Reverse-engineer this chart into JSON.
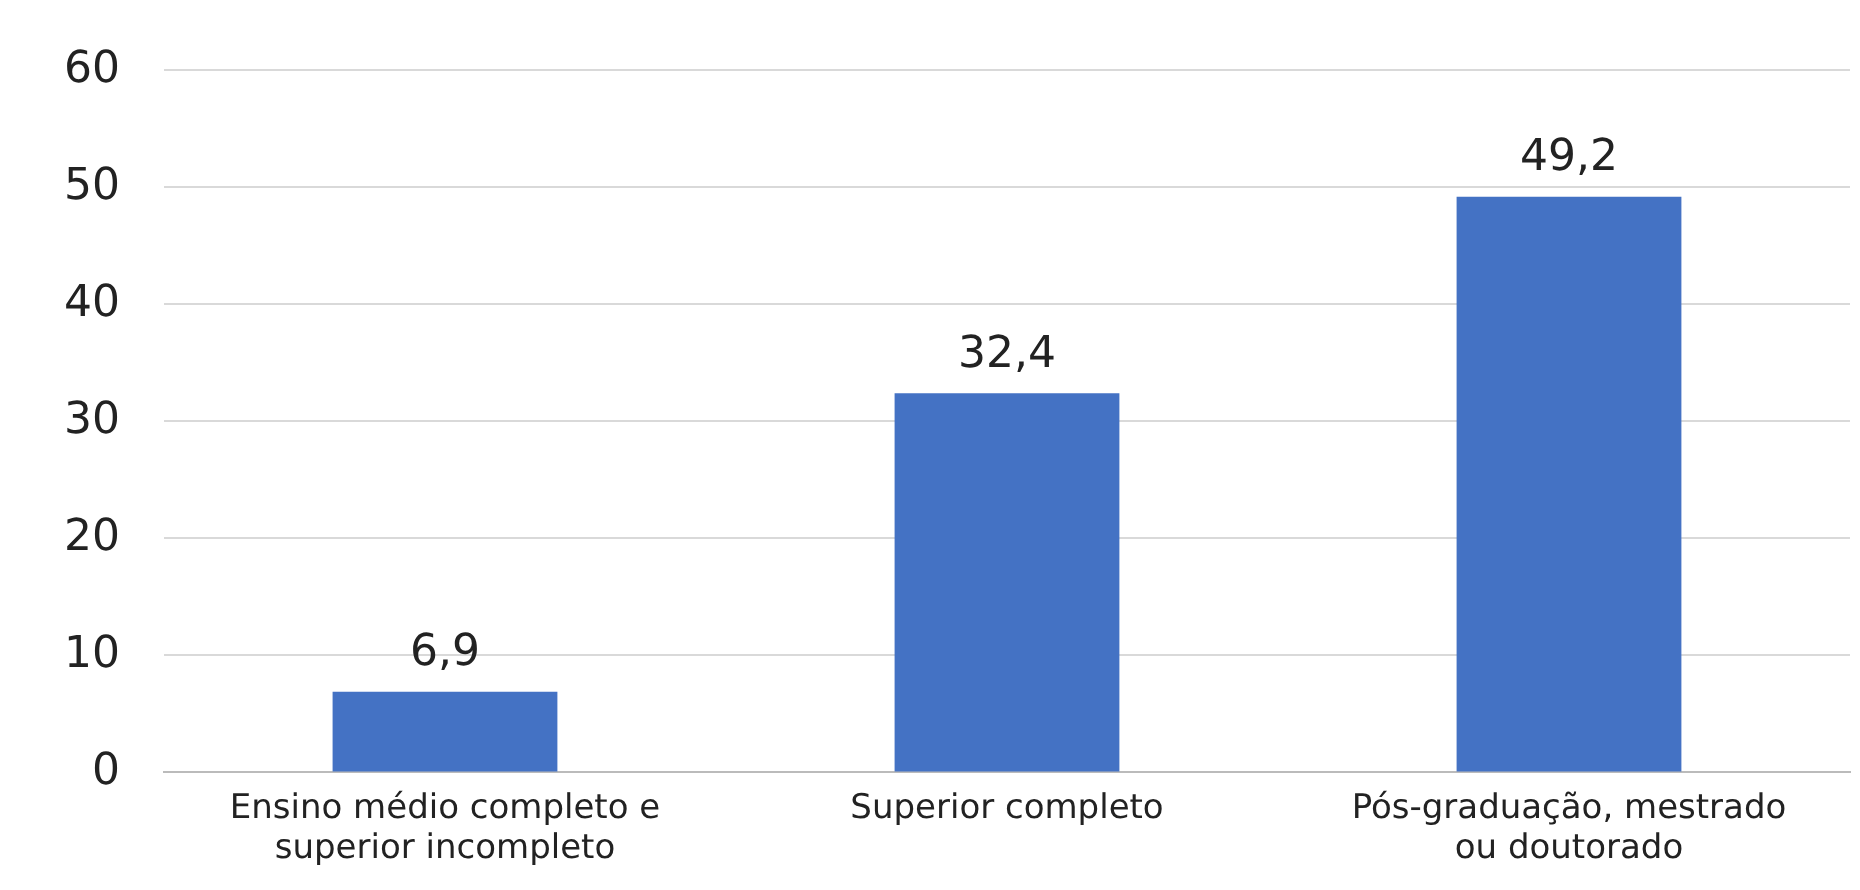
{
  "chart_data": {
    "type": "bar",
    "categories": [
      "Ensino médio completo e superior incompleto",
      "Superior completo",
      "Pós-graduação, mestrado ou doutorado"
    ],
    "values": [
      6.9,
      32.4,
      49.2
    ],
    "value_labels": [
      "6,9",
      "32,4",
      "49,2"
    ],
    "color": "#4472c4",
    "ylim": [
      0,
      60
    ],
    "yticks": [
      0,
      10,
      20,
      30,
      40,
      50,
      60
    ],
    "grid": "y"
  }
}
